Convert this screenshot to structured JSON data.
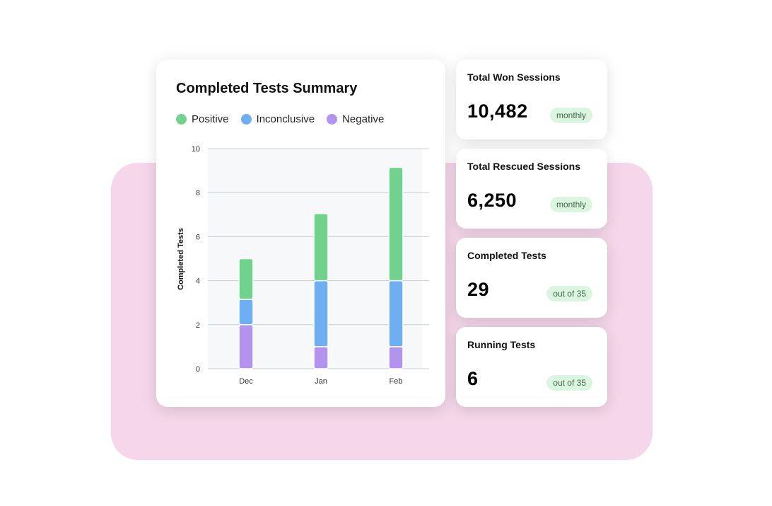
{
  "chart_data": {
    "type": "bar",
    "stacked": true,
    "title": "Completed Tests Summary",
    "xlabel": "",
    "ylabel": "Completed Tests",
    "categories": [
      "Dec",
      "Jan",
      "Feb"
    ],
    "ylim": [
      0,
      10
    ],
    "yticks": [
      0,
      2,
      4,
      6,
      8,
      10
    ],
    "grid": true,
    "legend_position": "top-left",
    "series": [
      {
        "name": "Negative",
        "color": "#b393ee",
        "values": [
          2,
          1,
          1
        ]
      },
      {
        "name": "Inconclusive",
        "color": "#6eaef2",
        "values": [
          1.15,
          3,
          3
        ]
      },
      {
        "name": "Positive",
        "color": "#71d28e",
        "values": [
          1.85,
          3.05,
          5.15
        ]
      }
    ],
    "legend": [
      {
        "name": "Positive",
        "color": "#71d28e"
      },
      {
        "name": "Inconclusive",
        "color": "#6eaef2"
      },
      {
        "name": "Negative",
        "color": "#b393ee"
      }
    ]
  },
  "stats": [
    {
      "title": "Total Won Sessions",
      "value": "10,482",
      "badge": "monthly"
    },
    {
      "title": "Total Rescued Sessions",
      "value": "6,250",
      "badge": "monthly"
    },
    {
      "title": "Completed Tests",
      "value": "29",
      "badge": "out of 35"
    },
    {
      "title": "Running Tests",
      "value": "6",
      "badge": "out of 35"
    }
  ],
  "colors": {
    "background_accent": "#f5d6ea",
    "badge_bg": "#dcf5e1",
    "badge_text": "#3d6b47",
    "plot_area": "#f7f8fa",
    "gridline": "#c9ccd1"
  }
}
